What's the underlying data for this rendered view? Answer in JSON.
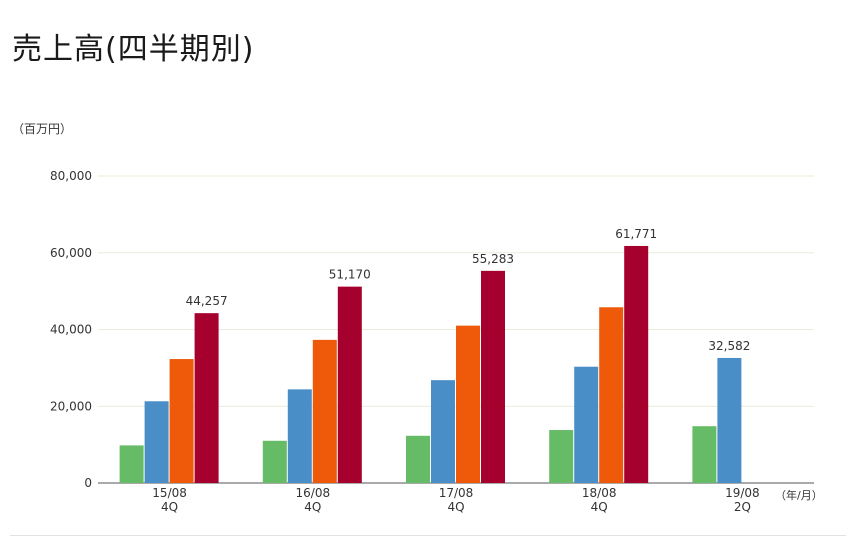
{
  "title": "売上高(四半期別)",
  "y_unit": "（百万円）",
  "x_unit": "（年/月）",
  "colors": {
    "grid": "#e9ecd9",
    "axis": "#555555"
  },
  "chart_data": {
    "type": "bar",
    "categories": [
      {
        "label": "15/08",
        "sub": "4Q"
      },
      {
        "label": "16/08",
        "sub": "4Q"
      },
      {
        "label": "17/08",
        "sub": "4Q"
      },
      {
        "label": "18/08",
        "sub": "4Q"
      },
      {
        "label": "19/08",
        "sub": "2Q"
      }
    ],
    "series": [
      {
        "color": "#66bb66",
        "values": [
          9800,
          11000,
          12300,
          13800,
          14800
        ]
      },
      {
        "color": "#4a8ec8",
        "values": [
          21300,
          24400,
          26800,
          30300,
          32582
        ]
      },
      {
        "color": "#ee5a0a",
        "values": [
          32300,
          37300,
          41000,
          45800,
          null
        ]
      },
      {
        "color": "#a6002e",
        "values": [
          44257,
          51170,
          55283,
          61771,
          null
        ]
      }
    ],
    "data_labels": [
      {
        "category": 0,
        "series": 3,
        "text": "44,257"
      },
      {
        "category": 1,
        "series": 3,
        "text": "51,170"
      },
      {
        "category": 2,
        "series": 3,
        "text": "55,283"
      },
      {
        "category": 3,
        "series": 3,
        "text": "61,771"
      },
      {
        "category": 4,
        "series": 1,
        "text": "32,582"
      }
    ],
    "y_ticks": [
      {
        "value": 0,
        "label": "0"
      },
      {
        "value": 20000,
        "label": "20,000"
      },
      {
        "value": 40000,
        "label": "40,000"
      },
      {
        "value": 60000,
        "label": "60,000"
      },
      {
        "value": 80000,
        "label": "80,000"
      }
    ],
    "ylim": [
      0,
      80000
    ],
    "grid": true,
    "legend": "none"
  }
}
